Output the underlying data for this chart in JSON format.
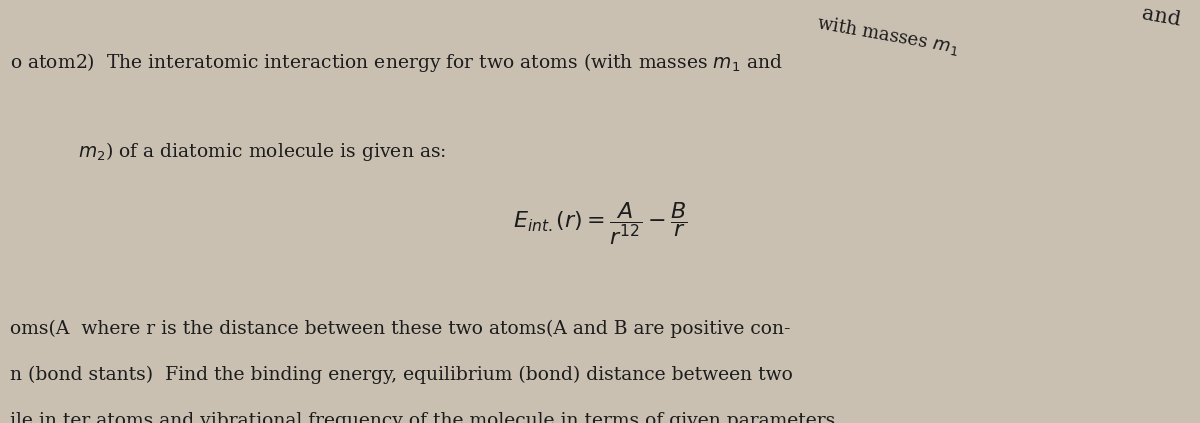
{
  "bg_color": "#c9c0b2",
  "fig_width": 12.0,
  "fig_height": 4.23,
  "dpi": 100,
  "line1": "o atom2)  The interatomic interaction energy for two atoms (with masses $m_1$ and",
  "line2": "$m_2$) of a diatomic molecule is given as:",
  "formula": "$E_{int.}(r) = \\dfrac{A}{r^{12}} - \\dfrac{B}{r}$",
  "line3": "oms(A  where r is the distance between these two atoms(A and B are positive con-",
  "line4": "n (bond stants)  Find the binding energy, equilibrium (bond) distance between two",
  "line5": "ile in ter atoms and vibrational frequency of the molecule in terms of given parameters.",
  "text_color": "#1c1c1c",
  "font_main": 13.5,
  "font_formula": 16
}
